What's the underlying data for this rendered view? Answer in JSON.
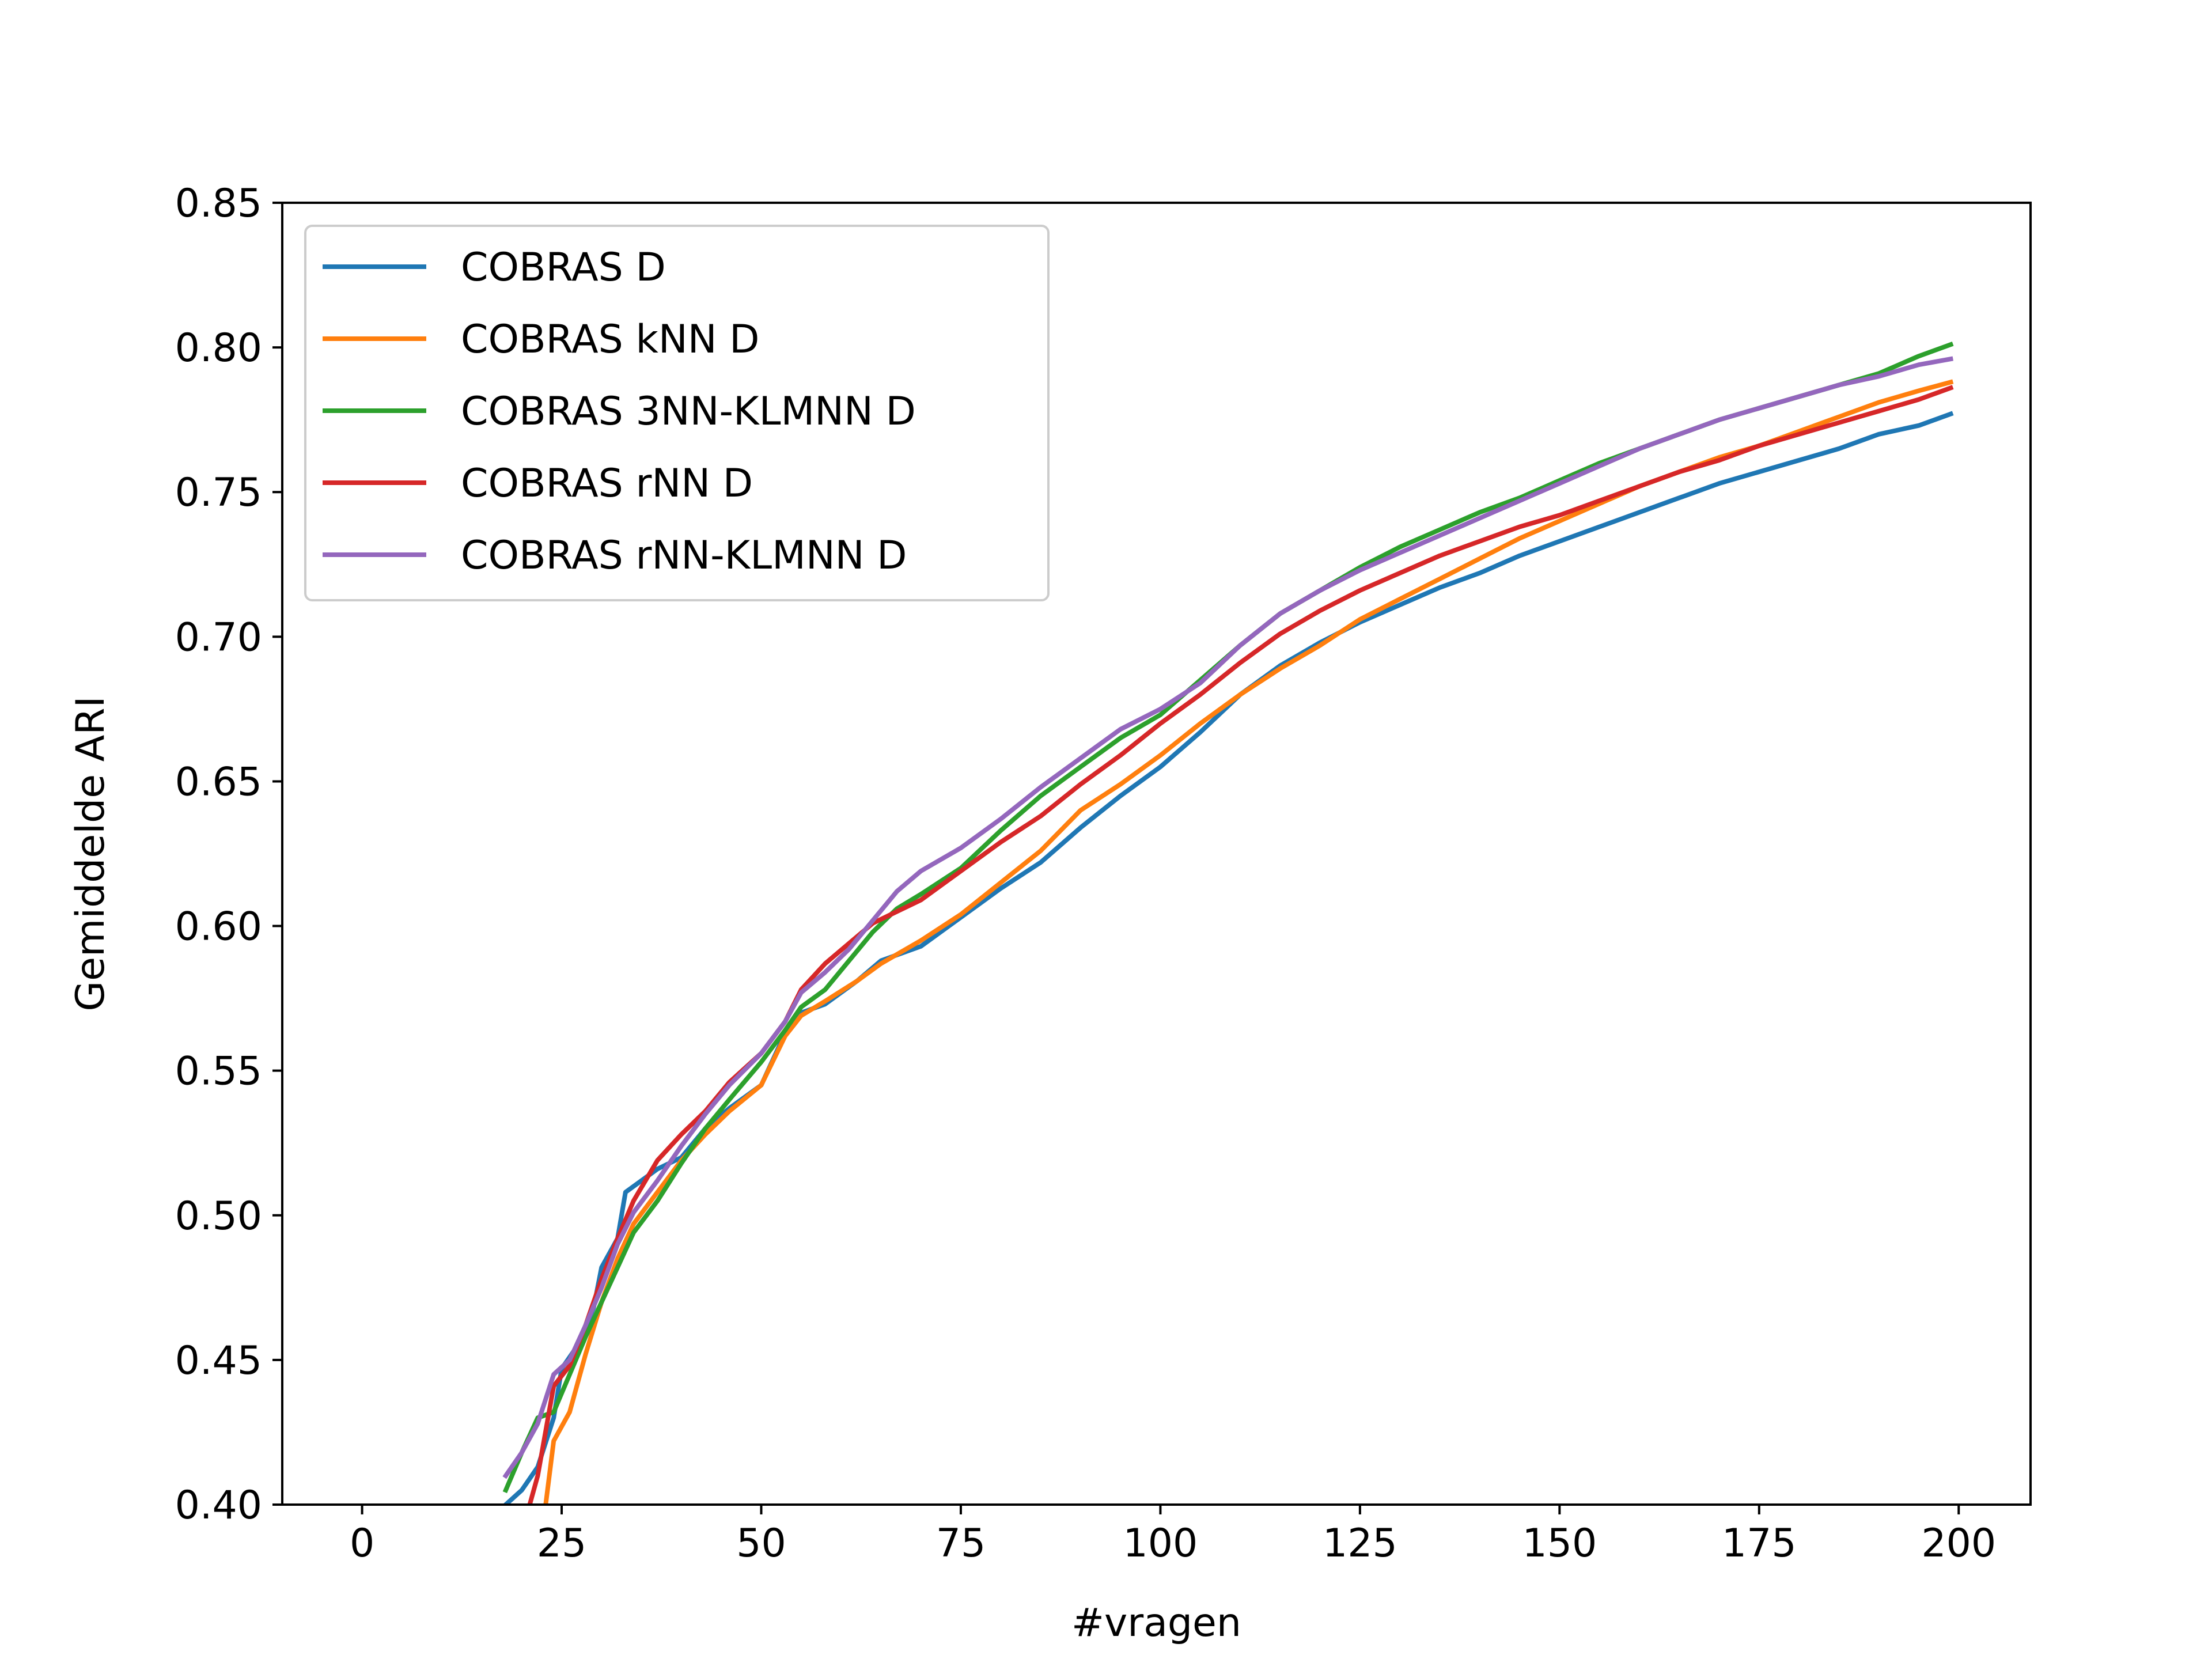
{
  "chart_data": {
    "type": "line",
    "title": "",
    "xlabel": "#vragen",
    "ylabel": "Gemiddelde ARI",
    "xlim": [
      -10,
      209
    ],
    "ylim": [
      0.4,
      0.85
    ],
    "x_ticks": [
      0,
      25,
      50,
      75,
      100,
      125,
      150,
      175,
      200
    ],
    "y_ticks": [
      0.4,
      0.45,
      0.5,
      0.55,
      0.6,
      0.65,
      0.7,
      0.75,
      0.8,
      0.85
    ],
    "x_tick_labels": [
      "0",
      "25",
      "50",
      "75",
      "100",
      "125",
      "150",
      "175",
      "200"
    ],
    "y_tick_labels": [
      "0.40",
      "0.45",
      "0.50",
      "0.55",
      "0.60",
      "0.65",
      "0.70",
      "0.75",
      "0.80",
      "0.85"
    ],
    "grid": false,
    "legend_position": "upper-left",
    "series": [
      {
        "name": "COBRAS D",
        "color": "#1f77b4",
        "x": [
          18,
          20,
          22,
          24,
          25,
          27,
          29,
          30,
          32,
          33,
          35,
          37,
          40,
          43,
          46,
          50,
          53,
          55,
          58,
          62,
          65,
          70,
          75,
          80,
          85,
          90,
          95,
          100,
          105,
          110,
          115,
          120,
          125,
          130,
          135,
          140,
          145,
          150,
          155,
          160,
          165,
          170,
          175,
          180,
          185,
          190,
          195,
          199
        ],
        "y": [
          0.4,
          0.405,
          0.413,
          0.43,
          0.447,
          0.455,
          0.468,
          0.482,
          0.492,
          0.508,
          0.512,
          0.516,
          0.52,
          0.53,
          0.537,
          0.545,
          0.563,
          0.57,
          0.573,
          0.581,
          0.588,
          0.593,
          0.603,
          0.613,
          0.622,
          0.634,
          0.645,
          0.655,
          0.667,
          0.68,
          0.69,
          0.698,
          0.705,
          0.711,
          0.717,
          0.722,
          0.728,
          0.733,
          0.738,
          0.743,
          0.748,
          0.753,
          0.757,
          0.761,
          0.765,
          0.77,
          0.773,
          0.777
        ]
      },
      {
        "name": "COBRAS kNN D",
        "color": "#ff7f0e",
        "x": [
          23,
          24,
          26,
          28,
          30,
          32,
          34,
          37,
          40,
          43,
          46,
          50,
          53,
          55,
          58,
          62,
          65,
          70,
          75,
          80,
          85,
          90,
          95,
          100,
          105,
          110,
          115,
          120,
          125,
          130,
          135,
          140,
          145,
          150,
          155,
          160,
          165,
          170,
          175,
          180,
          185,
          190,
          195,
          199
        ],
        "y": [
          0.4,
          0.422,
          0.432,
          0.452,
          0.47,
          0.485,
          0.497,
          0.508,
          0.519,
          0.528,
          0.536,
          0.545,
          0.562,
          0.569,
          0.574,
          0.581,
          0.587,
          0.595,
          0.604,
          0.615,
          0.626,
          0.64,
          0.649,
          0.659,
          0.67,
          0.68,
          0.689,
          0.697,
          0.706,
          0.713,
          0.72,
          0.727,
          0.734,
          0.74,
          0.746,
          0.752,
          0.757,
          0.762,
          0.766,
          0.771,
          0.776,
          0.781,
          0.785,
          0.788
        ]
      },
      {
        "name": "COBRAS 3NN-KLMNN D",
        "color": "#2ca02c",
        "x": [
          18,
          20,
          22,
          24,
          26,
          28,
          30,
          32,
          34,
          37,
          40,
          43,
          46,
          50,
          53,
          55,
          58,
          61,
          64,
          67,
          70,
          75,
          80,
          85,
          90,
          95,
          100,
          105,
          110,
          115,
          120,
          125,
          130,
          135,
          140,
          145,
          150,
          155,
          160,
          165,
          170,
          175,
          180,
          185,
          190,
          195,
          199
        ],
        "y": [
          0.405,
          0.418,
          0.43,
          0.432,
          0.445,
          0.458,
          0.47,
          0.482,
          0.494,
          0.505,
          0.518,
          0.53,
          0.54,
          0.553,
          0.564,
          0.572,
          0.578,
          0.588,
          0.598,
          0.606,
          0.611,
          0.62,
          0.633,
          0.645,
          0.655,
          0.665,
          0.673,
          0.685,
          0.697,
          0.708,
          0.716,
          0.724,
          0.731,
          0.737,
          0.743,
          0.748,
          0.754,
          0.76,
          0.765,
          0.77,
          0.775,
          0.779,
          0.783,
          0.787,
          0.791,
          0.797,
          0.801
        ]
      },
      {
        "name": "COBRAS rNN  D",
        "color": "#d62728",
        "x": [
          21,
          22,
          24,
          26,
          28,
          30,
          32,
          34,
          37,
          40,
          43,
          46,
          50,
          53,
          55,
          58,
          61,
          64,
          67,
          70,
          75,
          80,
          85,
          90,
          95,
          100,
          105,
          110,
          115,
          120,
          125,
          130,
          135,
          140,
          145,
          150,
          155,
          160,
          165,
          170,
          175,
          180,
          185,
          190,
          195,
          199
        ],
        "y": [
          0.4,
          0.41,
          0.441,
          0.448,
          0.462,
          0.478,
          0.492,
          0.505,
          0.519,
          0.528,
          0.536,
          0.546,
          0.556,
          0.567,
          0.578,
          0.587,
          0.594,
          0.601,
          0.605,
          0.609,
          0.619,
          0.629,
          0.638,
          0.649,
          0.659,
          0.67,
          0.68,
          0.691,
          0.701,
          0.709,
          0.716,
          0.722,
          0.728,
          0.733,
          0.738,
          0.742,
          0.747,
          0.752,
          0.757,
          0.761,
          0.766,
          0.77,
          0.774,
          0.778,
          0.782,
          0.786
        ]
      },
      {
        "name": "COBRAS rNN-KLMNN D",
        "color": "#9467bd",
        "x": [
          18,
          20,
          22,
          24,
          26,
          28,
          30,
          32,
          34,
          37,
          40,
          43,
          46,
          50,
          53,
          55,
          58,
          61,
          64,
          67,
          70,
          75,
          80,
          85,
          90,
          95,
          100,
          105,
          110,
          115,
          120,
          125,
          130,
          135,
          140,
          145,
          150,
          155,
          160,
          165,
          170,
          175,
          180,
          185,
          190,
          195,
          199
        ],
        "y": [
          0.41,
          0.418,
          0.428,
          0.445,
          0.45,
          0.462,
          0.475,
          0.49,
          0.501,
          0.512,
          0.524,
          0.535,
          0.545,
          0.556,
          0.567,
          0.577,
          0.584,
          0.592,
          0.602,
          0.612,
          0.619,
          0.627,
          0.637,
          0.648,
          0.658,
          0.668,
          0.675,
          0.684,
          0.697,
          0.708,
          0.716,
          0.723,
          0.729,
          0.735,
          0.741,
          0.747,
          0.753,
          0.759,
          0.765,
          0.77,
          0.775,
          0.779,
          0.783,
          0.787,
          0.79,
          0.794,
          0.796
        ]
      }
    ]
  }
}
